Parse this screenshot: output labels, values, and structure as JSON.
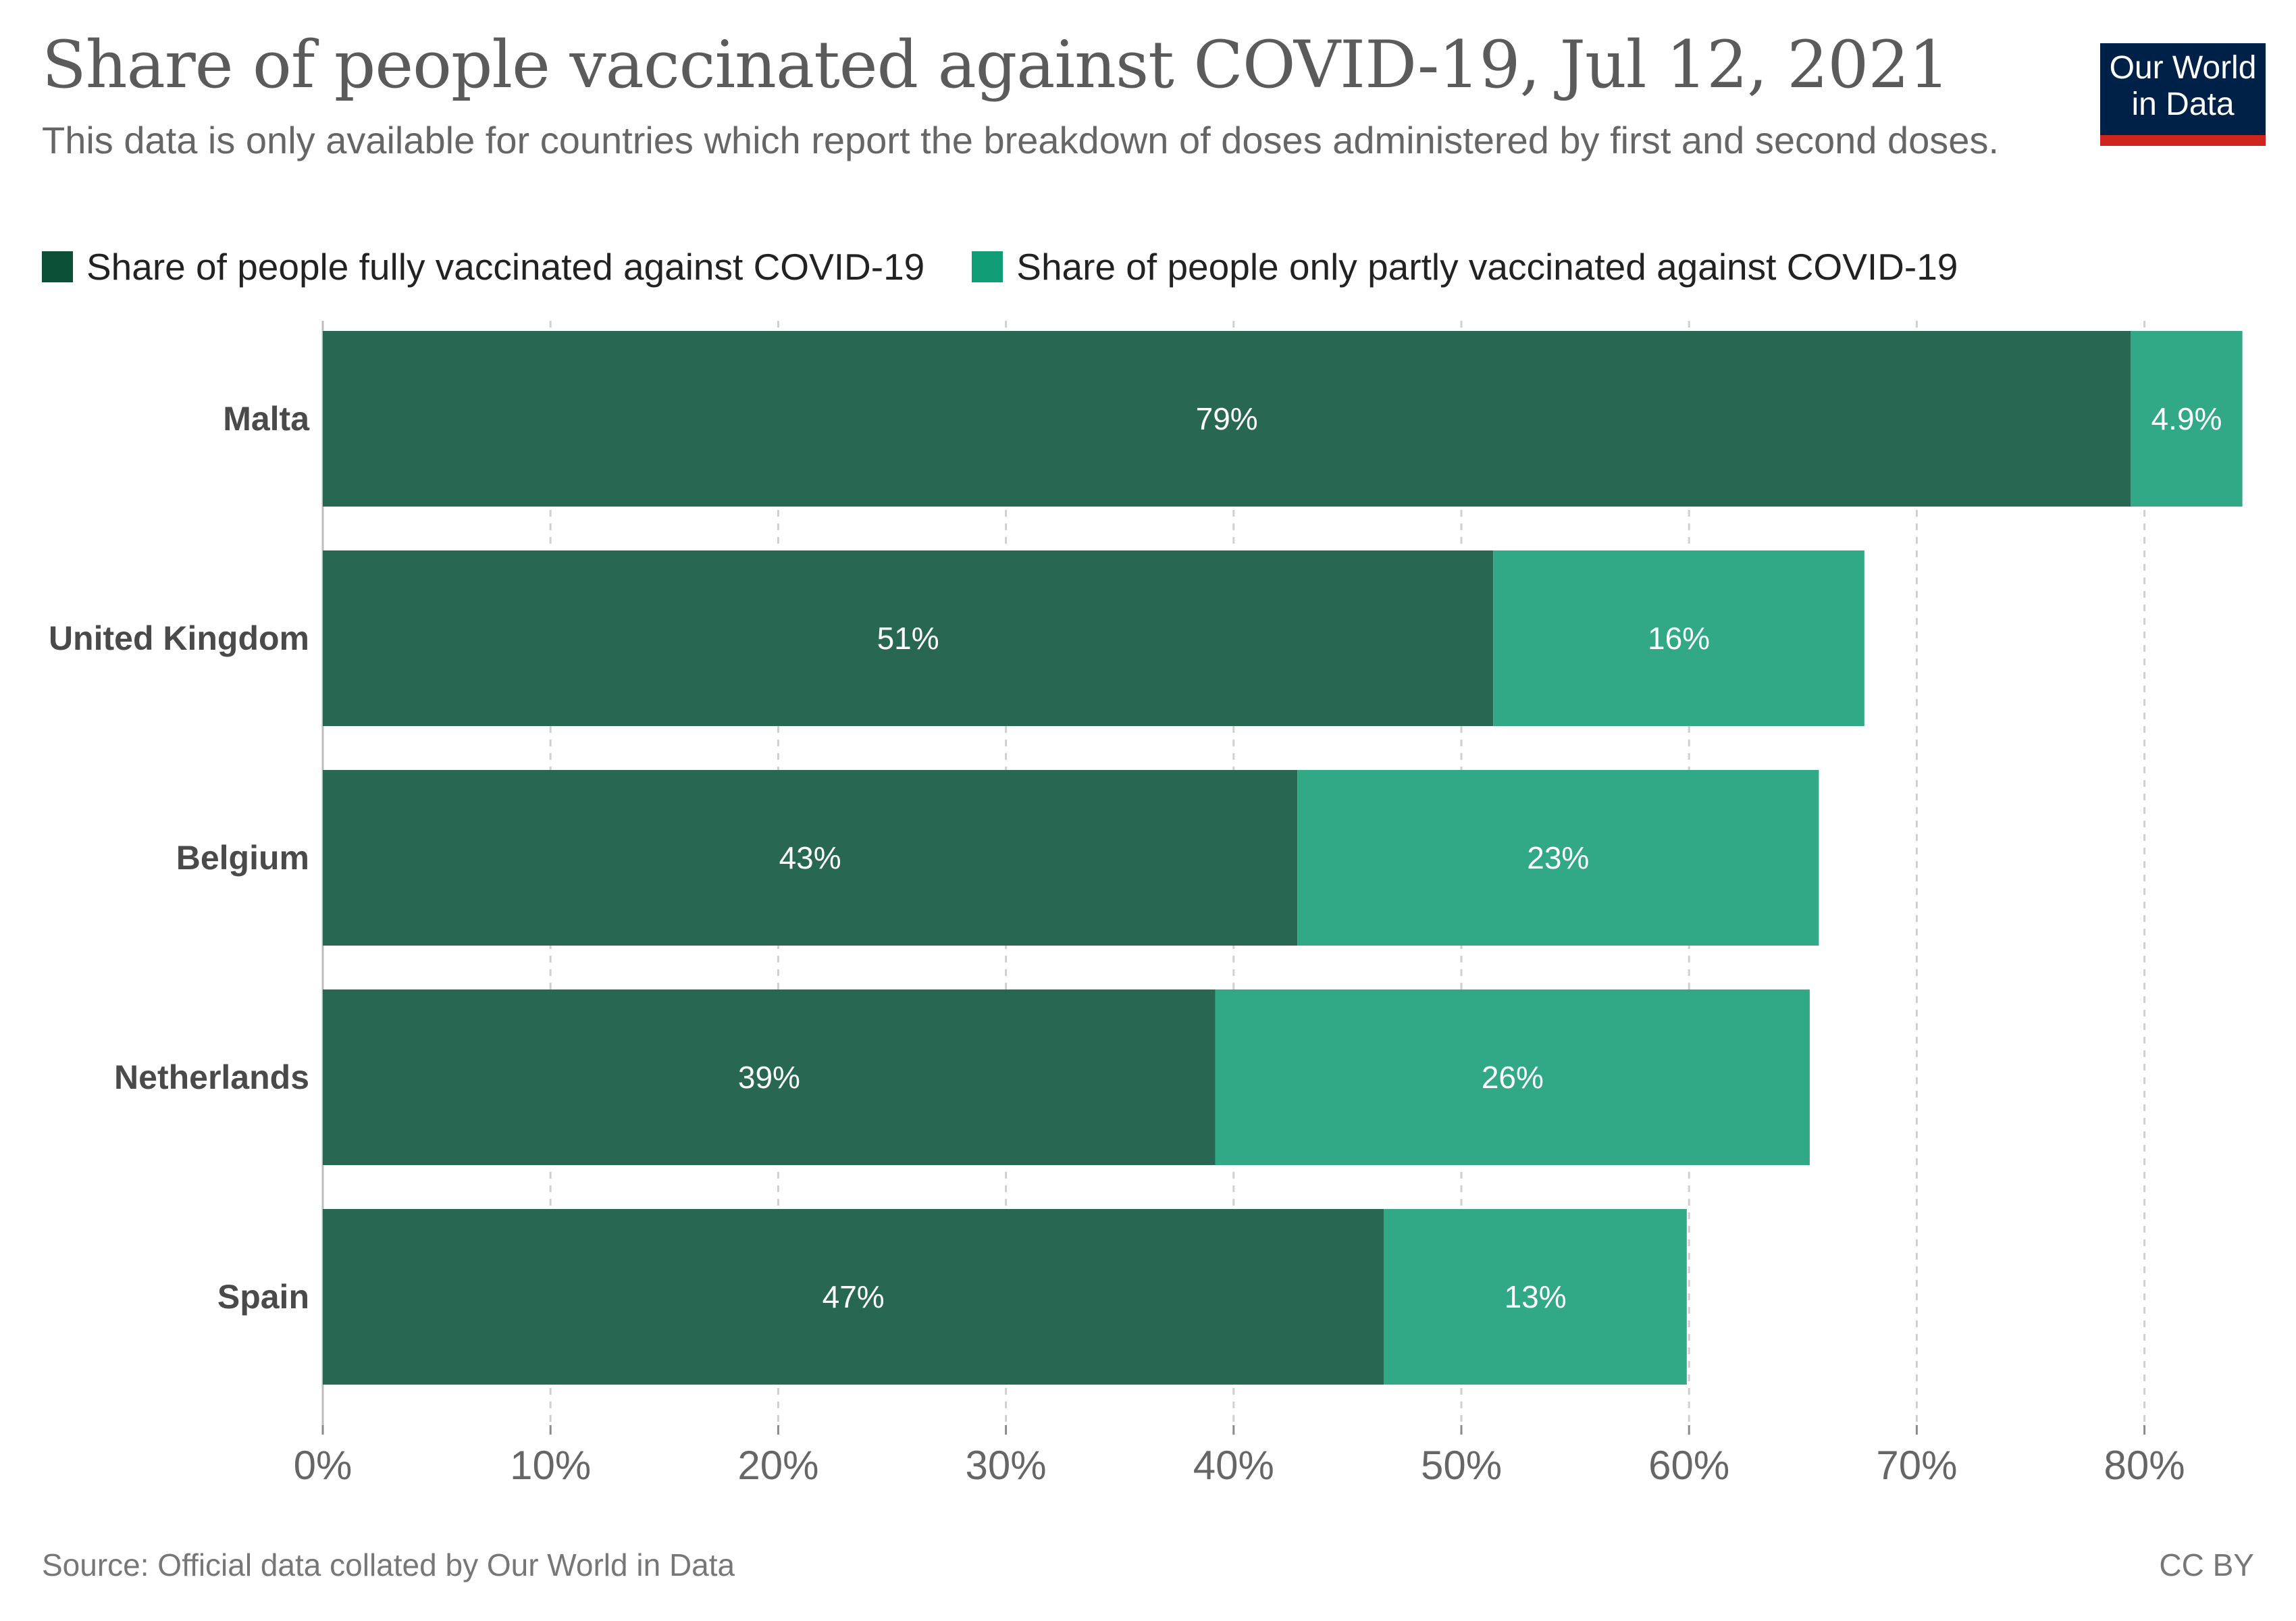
{
  "header": {
    "title": "Share of people vaccinated against COVID-19, Jul 12, 2021",
    "subtitle": "This data is only available for countries which report the breakdown of doses administered by first and second doses.",
    "logo_line1": "Our World",
    "logo_line2": "in Data"
  },
  "footer": {
    "source": "Source: Official data collated by Our World in Data",
    "license": "CC BY"
  },
  "colors": {
    "fully_legend": "#0b5137",
    "partly_legend": "#119d75",
    "fully_bar": "#286852",
    "partly_bar": "#31a986",
    "logo_bg": "#002147",
    "logo_accent": "#ce261e"
  },
  "chart_data": {
    "type": "bar",
    "orientation": "horizontal",
    "stacked": true,
    "categories": [
      "Malta",
      "United Kingdom",
      "Belgium",
      "Netherlands",
      "Spain"
    ],
    "series": [
      {
        "name": "Share of people fully vaccinated against COVID-19",
        "values": [
          79.4,
          51.4,
          42.8,
          39.2,
          46.6
        ],
        "labels": [
          "79%",
          "51%",
          "43%",
          "39%",
          "47%"
        ]
      },
      {
        "name": "Share of people only partly vaccinated against COVID-19",
        "values": [
          4.9,
          16.3,
          22.9,
          26.1,
          13.3
        ],
        "labels": [
          "4.9%",
          "16%",
          "23%",
          "26%",
          "13%"
        ]
      }
    ],
    "xlim": [
      0,
      85
    ],
    "xticks": [
      0,
      10,
      20,
      30,
      40,
      50,
      60,
      70,
      80
    ],
    "xtick_labels": [
      "0%",
      "10%",
      "20%",
      "30%",
      "40%",
      "50%",
      "60%",
      "70%",
      "80%"
    ],
    "grid": "vertical dashed",
    "legend_position": "top"
  }
}
